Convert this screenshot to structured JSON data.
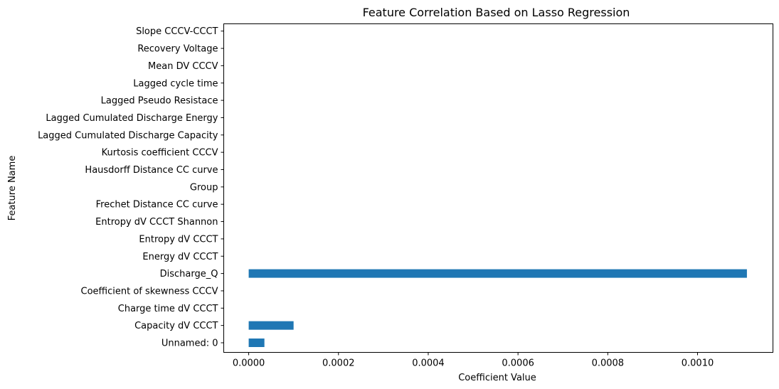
{
  "chart_data": {
    "type": "bar",
    "orientation": "horizontal",
    "title": "Feature Correlation Based on Lasso Regression",
    "xlabel": "Coefficient Value",
    "ylabel": "Feature Name",
    "xlim": [
      -5.56e-05,
      0.001168
    ],
    "xticks": [
      0.0,
      0.0002,
      0.0004,
      0.0006,
      0.0008,
      0.001
    ],
    "xtick_labels": [
      "0.0000",
      "0.0002",
      "0.0004",
      "0.0006",
      "0.0008",
      "0.0010"
    ],
    "bar_color": "#1f77b4",
    "grid": false,
    "categories": [
      "Unnamed: 0",
      "Capacity dV CCCT",
      "Charge time dV CCCT",
      "Coefficient of skewness CCCV",
      "Discharge_Q",
      "Energy dV CCCT",
      "Entropy dV CCCT",
      "Entropy dV CCCT Shannon",
      "Frechet Distance CC curve",
      "Group",
      "Hausdorff Distance CC curve",
      "Kurtosis coefficient CCCV",
      "Lagged Cumulated Discharge Capacity",
      "Lagged Cumulated Discharge Energy",
      "Lagged Pseudo Resistace",
      "Lagged cycle time",
      "Mean DV CCCV",
      "Recovery Voltage",
      "Slope CCCV-CCCT"
    ],
    "values": [
      3.5e-05,
      0.0001,
      0,
      0,
      0.00111,
      0,
      0,
      0,
      0,
      0,
      0,
      0,
      0,
      0,
      0,
      0,
      0,
      0,
      0
    ]
  }
}
